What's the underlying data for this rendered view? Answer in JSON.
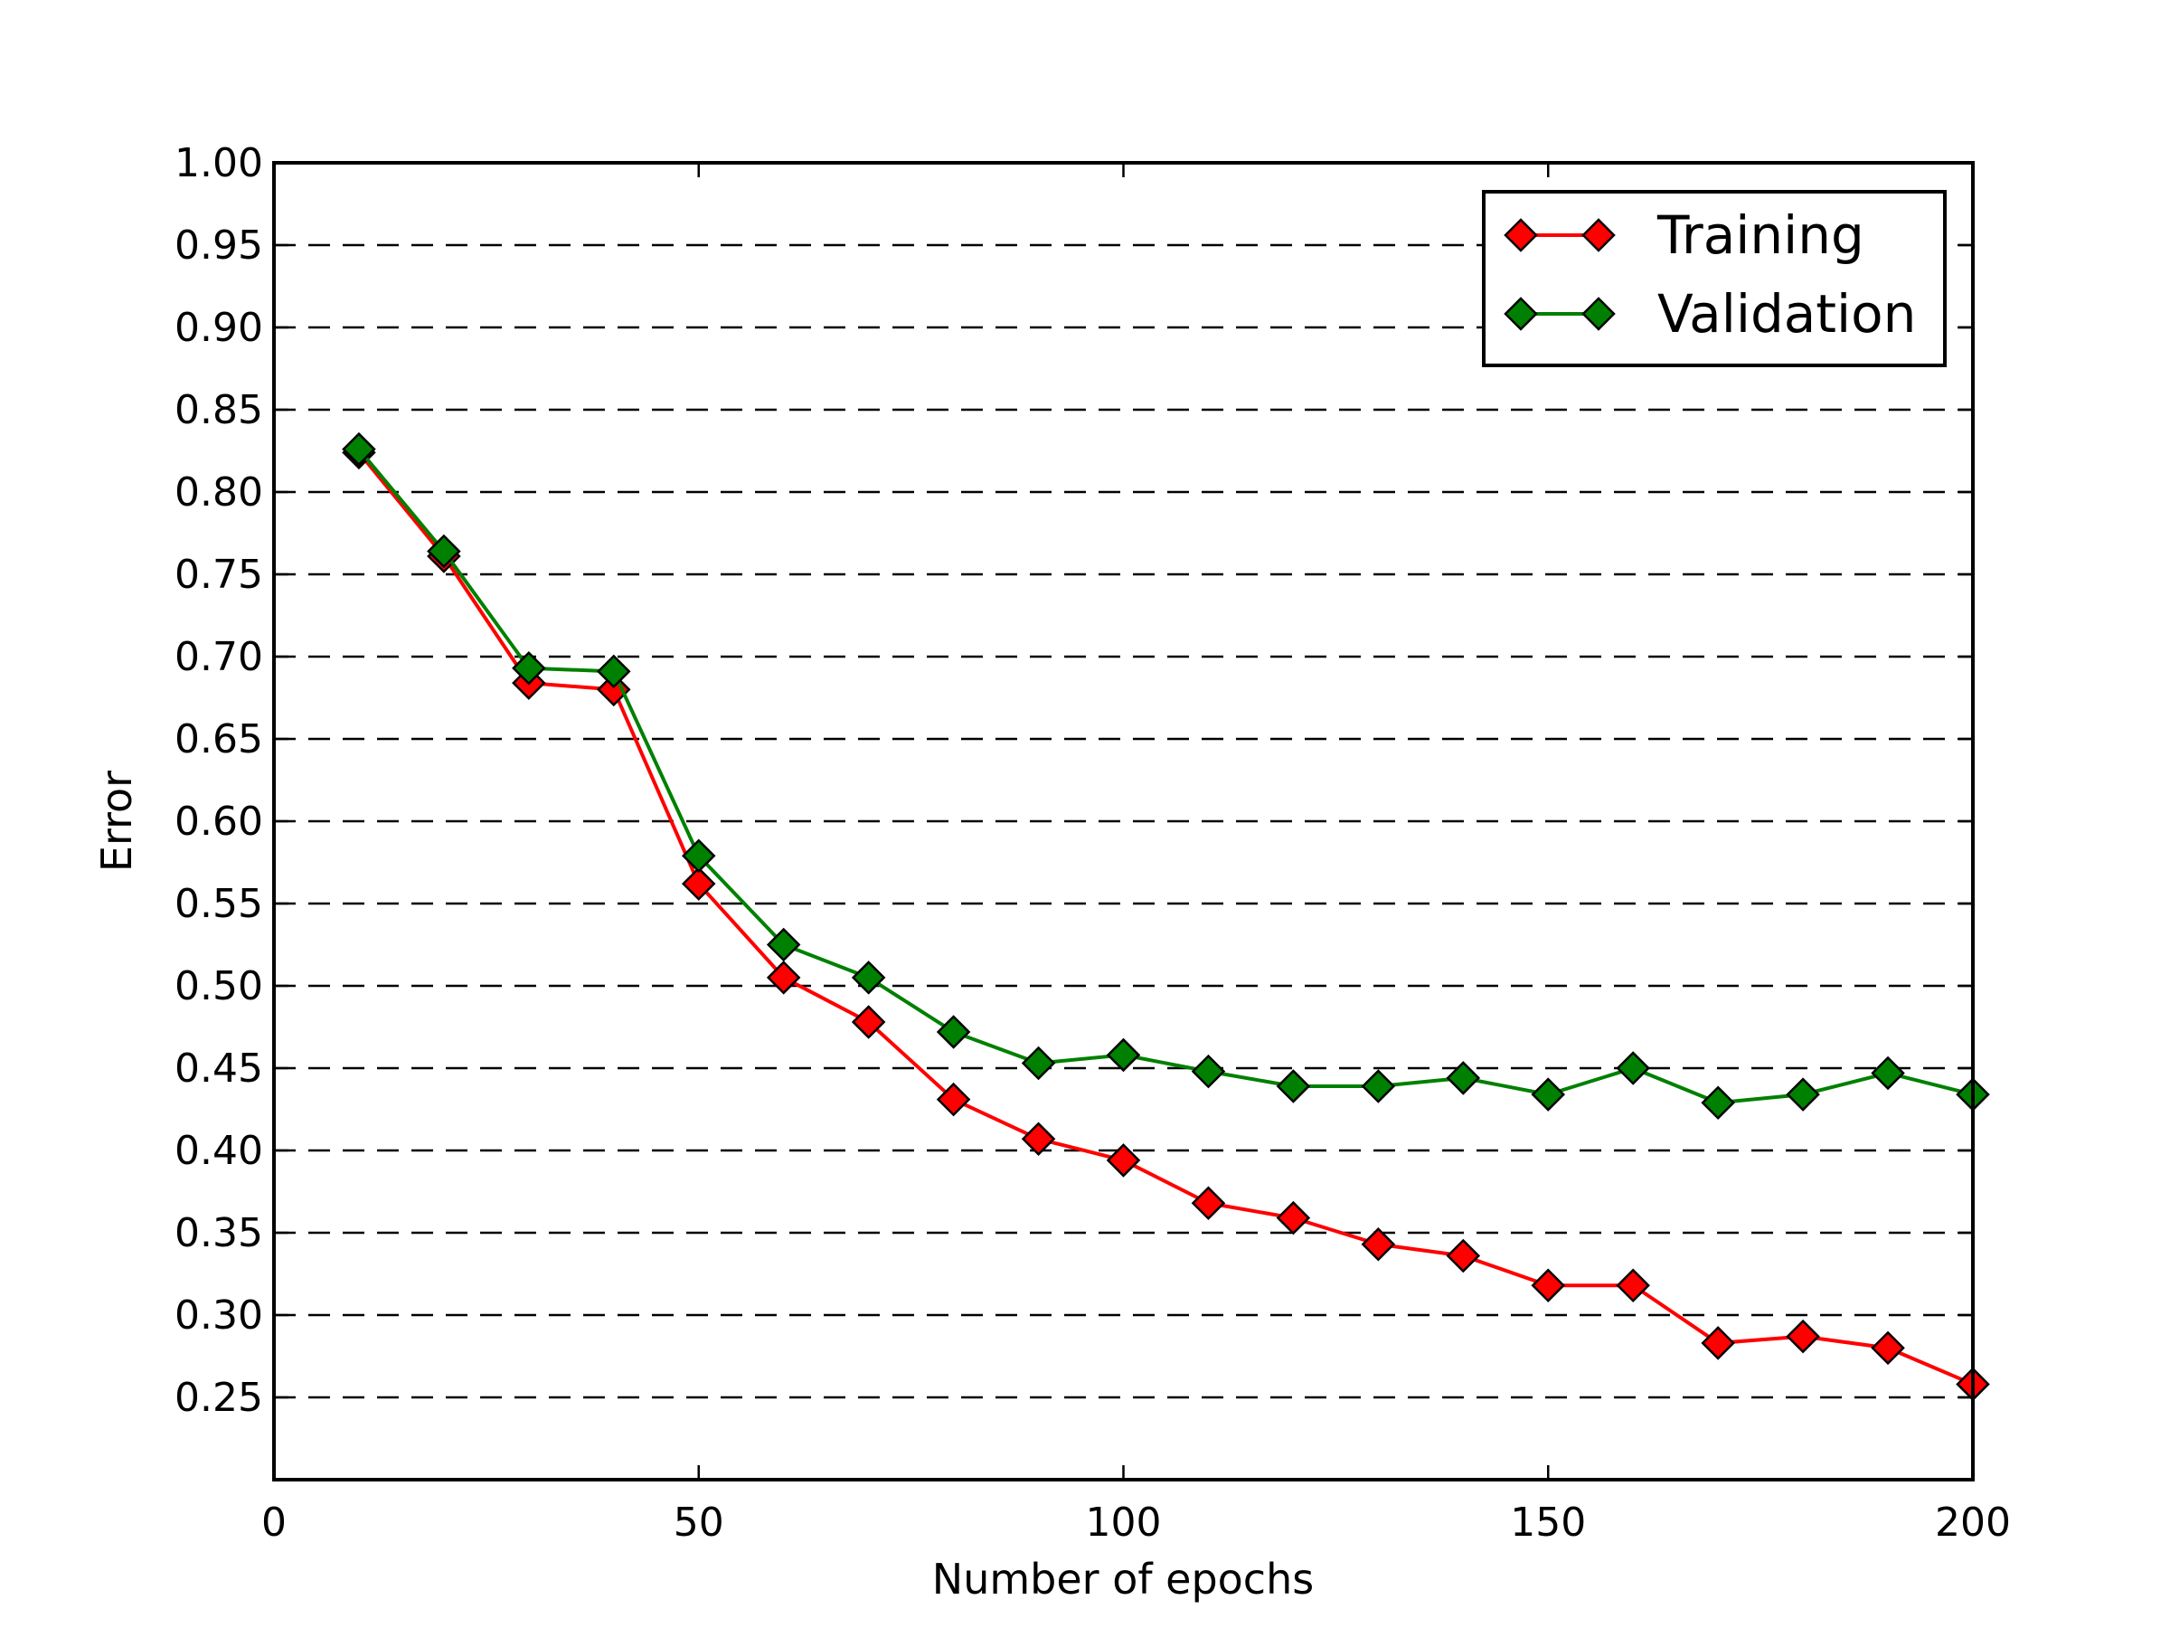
{
  "chart_data": {
    "type": "line",
    "xlabel": "Number of epochs",
    "ylabel": "Error",
    "xlim": [
      0,
      200
    ],
    "ylim": [
      0.2,
      1.0
    ],
    "xticks": [
      0,
      50,
      100,
      150,
      200
    ],
    "xtick_labels": [
      "0",
      "50",
      "100",
      "150",
      "200"
    ],
    "yticks": [
      0.25,
      0.3,
      0.35,
      0.4,
      0.45,
      0.5,
      0.55,
      0.6,
      0.65,
      0.7,
      0.75,
      0.8,
      0.85,
      0.9,
      0.95,
      1.0
    ],
    "ytick_labels": [
      "0.25",
      "0.30",
      "0.35",
      "0.40",
      "0.45",
      "0.50",
      "0.55",
      "0.60",
      "0.65",
      "0.70",
      "0.75",
      "0.80",
      "0.85",
      "0.90",
      "0.95",
      "1.00"
    ],
    "grid": "horizontal dashed",
    "legend_position": "top-right",
    "x": [
      10,
      20,
      30,
      40,
      50,
      60,
      70,
      80,
      90,
      100,
      110,
      120,
      130,
      140,
      150,
      160,
      170,
      180,
      190,
      200
    ],
    "series": [
      {
        "name": "Training",
        "color": "#ff0000",
        "marker": "diamond",
        "values": [
          0.824,
          0.761,
          0.684,
          0.68,
          0.562,
          0.505,
          0.478,
          0.431,
          0.407,
          0.394,
          0.368,
          0.359,
          0.343,
          0.336,
          0.318,
          0.318,
          0.283,
          0.287,
          0.28,
          0.258
        ]
      },
      {
        "name": "Validation",
        "color": "#008000",
        "marker": "diamond",
        "values": [
          0.826,
          0.764,
          0.693,
          0.691,
          0.579,
          0.525,
          0.505,
          0.472,
          0.453,
          0.458,
          0.448,
          0.439,
          0.439,
          0.444,
          0.434,
          0.45,
          0.429,
          0.434,
          0.447,
          0.434
        ]
      }
    ]
  }
}
